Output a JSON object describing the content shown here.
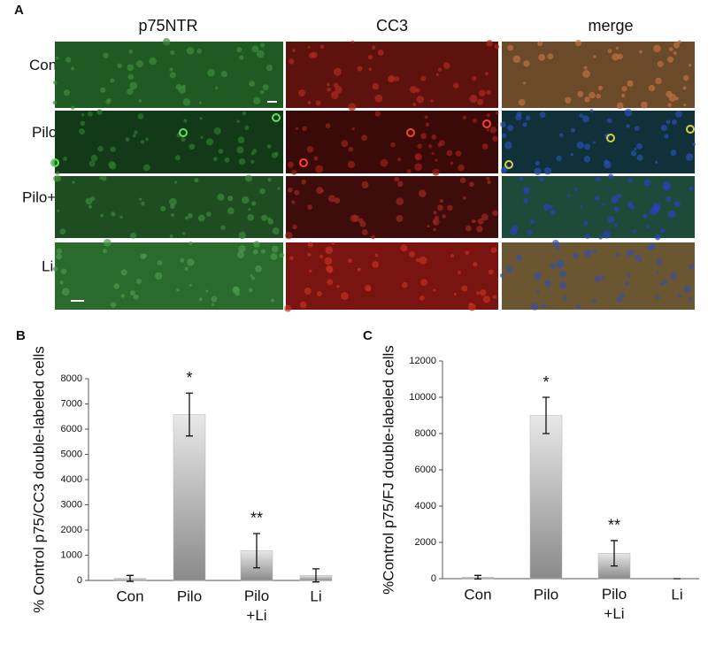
{
  "panel_a": {
    "label": "A",
    "columns": [
      "p75NTR",
      "CC3",
      "merge"
    ],
    "rows": [
      "Con",
      "Pilo",
      "Pilo+Li",
      "Li"
    ]
  },
  "chart_data": [
    {
      "type": "bar",
      "panel_label": "B",
      "y_label": "% Control p75/CC3 double-labeled cells",
      "categories": [
        "Con",
        "Pilo",
        "Pilo\n+Li",
        "Li"
      ],
      "values": [
        80,
        6580,
        1180,
        200
      ],
      "errors": [
        120,
        850,
        680,
        260
      ],
      "value_annotations": [
        null,
        "*",
        "**",
        null
      ],
      "color": "#b4b4b4",
      "ylim": [
        0,
        8000
      ],
      "yticks": [
        0,
        1000,
        2000,
        3000,
        4000,
        5000,
        6000,
        7000,
        8000
      ]
    },
    {
      "type": "bar",
      "panel_label": "C",
      "y_label": "%Control p75/FJ double-labeled cells",
      "categories": [
        "Con",
        "Pilo",
        "Pilo\n+Li",
        "Li"
      ],
      "values": [
        80,
        9000,
        1400,
        0
      ],
      "errors": [
        100,
        1000,
        700,
        0
      ],
      "value_annotations": [
        null,
        "*",
        "**",
        null
      ],
      "color": "#b4b4b4",
      "ylim": [
        0,
        12000
      ],
      "yticks": [
        0,
        2000,
        4000,
        6000,
        8000,
        10000,
        12000
      ]
    }
  ]
}
